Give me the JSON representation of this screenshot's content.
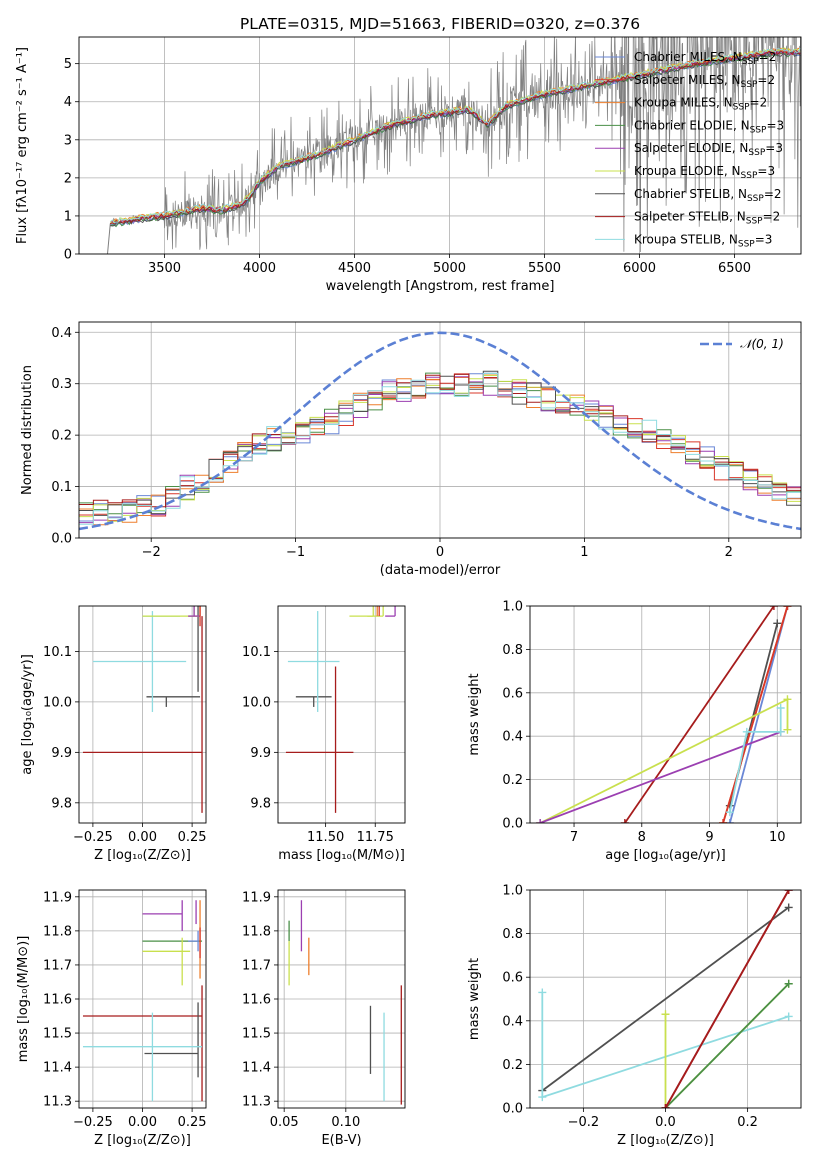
{
  "colors": {
    "chabrier_miles": "#6a87d6",
    "salpeter_miles": "#d9372a",
    "kroupa_miles": "#ee7f2d",
    "chabrier_elodie": "#4a8f47",
    "salpeter_elodie": "#9b3fb1",
    "kroupa_elodie": "#c9e04e",
    "chabrier_stelib": "#505050",
    "salpeter_stelib": "#a61c1c",
    "kroupa_stelib": "#8fdbe0",
    "spectrum": "#7f7f7f",
    "gaussian": "#5b80d4"
  },
  "chart_data": [
    {
      "id": "spectrum",
      "type": "line",
      "title": "PLATE=0315, MJD=51663, FIBERID=0320, z=0.376",
      "xlabel": "wavelength [Angstrom, rest frame]",
      "ylabel": "Flux [fλ10⁻¹⁷ erg cm⁻² s⁻¹ A⁻¹]",
      "xlim": [
        3050,
        6850
      ],
      "ylim": [
        0,
        5.7
      ],
      "xticks": [
        3500,
        4000,
        4500,
        5000,
        5500,
        6000,
        6500
      ],
      "yticks": [
        0,
        1,
        2,
        3,
        4,
        5
      ],
      "legend_position": "top-right",
      "continuum_anchors": [
        [
          3200,
          0.0
        ],
        [
          3215,
          0.8
        ],
        [
          3400,
          0.95
        ],
        [
          3500,
          1.0
        ],
        [
          3600,
          1.1
        ],
        [
          3700,
          1.2
        ],
        [
          3800,
          1.15
        ],
        [
          3900,
          1.3
        ],
        [
          3950,
          1.5
        ],
        [
          4000,
          1.9
        ],
        [
          4100,
          2.3
        ],
        [
          4300,
          2.6
        ],
        [
          4500,
          3.0
        ],
        [
          4700,
          3.4
        ],
        [
          4900,
          3.65
        ],
        [
          5100,
          3.8
        ],
        [
          5200,
          3.4
        ],
        [
          5300,
          3.9
        ],
        [
          5500,
          4.2
        ],
        [
          5700,
          4.4
        ],
        [
          5900,
          4.6
        ],
        [
          6100,
          4.8
        ],
        [
          6300,
          5.0
        ],
        [
          6500,
          5.15
        ],
        [
          6700,
          5.3
        ]
      ],
      "legend": [
        {
          "label": "Chabrier MILES, N",
          "sub": "SSP",
          "n": "=2",
          "color_key": "chabrier_miles"
        },
        {
          "label": "Salpeter MILES, N",
          "sub": "SSP",
          "n": "=2",
          "color_key": "salpeter_miles"
        },
        {
          "label": "Kroupa MILES, N",
          "sub": "SSP",
          "n": "=2",
          "color_key": "kroupa_miles"
        },
        {
          "label": "Chabrier ELODIE, N",
          "sub": "SSP",
          "n": "=3",
          "color_key": "chabrier_elodie"
        },
        {
          "label": "Salpeter ELODIE, N",
          "sub": "SSP",
          "n": "=3",
          "color_key": "salpeter_elodie"
        },
        {
          "label": "Kroupa ELODIE, N",
          "sub": "SSP",
          "n": "=3",
          "color_key": "kroupa_elodie"
        },
        {
          "label": "Chabrier STELIB, N",
          "sub": "SSP",
          "n": "=2",
          "color_key": "chabrier_stelib"
        },
        {
          "label": "Salpeter STELIB, N",
          "sub": "SSP",
          "n": "=2",
          "color_key": "salpeter_stelib"
        },
        {
          "label": "Kroupa STELIB, N",
          "sub": "SSP",
          "n": "=3",
          "color_key": "kroupa_stelib"
        }
      ]
    },
    {
      "id": "residuals",
      "type": "line",
      "xlabel": "(data-model)/error",
      "ylabel": "Normed distribution",
      "xlim": [
        -2.5,
        2.5
      ],
      "ylim": [
        0,
        0.42
      ],
      "xticks": [
        -2,
        -1,
        0,
        1,
        2
      ],
      "yticks": [
        0.0,
        0.1,
        0.2,
        0.3,
        0.4
      ],
      "gaussian_label": "𝒩(0, 1)",
      "legend_position": "top-right",
      "hist_profile": {
        "x": [
          -2.5,
          -2.2,
          -2.0,
          -1.8,
          -1.6,
          -1.4,
          -1.2,
          -1.0,
          -0.8,
          -0.6,
          -0.4,
          -0.2,
          0.0,
          0.2,
          0.4,
          0.6,
          0.8,
          1.0,
          1.2,
          1.4,
          1.6,
          1.8,
          2.0,
          2.2,
          2.5
        ],
        "y": [
          0.05,
          0.05,
          0.06,
          0.09,
          0.12,
          0.16,
          0.19,
          0.2,
          0.22,
          0.25,
          0.28,
          0.29,
          0.3,
          0.3,
          0.3,
          0.28,
          0.27,
          0.25,
          0.23,
          0.21,
          0.19,
          0.16,
          0.13,
          0.11,
          0.08
        ]
      }
    },
    {
      "id": "age_vs_Z",
      "type": "scatter",
      "xlabel": "Z [log₁₀(Z/Z⊙)]",
      "ylabel": "age  [log₁₀(age/yr)]",
      "xlim": [
        -0.32,
        0.32
      ],
      "ylim": [
        9.76,
        10.19
      ],
      "xticks": [
        -0.25,
        0.0,
        0.25
      ],
      "xticklabels": [
        "−0.25",
        "0.00",
        "0.25"
      ],
      "yticks": [
        9.8,
        9.9,
        10.0,
        10.1
      ],
      "points": [
        {
          "k": "chabrier_stelib",
          "x": 0.28,
          "y": 10.1,
          "xe": [
            0.0,
            0.0
          ],
          "ye": [
            0.08,
            0.11
          ]
        },
        {
          "k": "chabrier_stelib",
          "x": 0.12,
          "y": 10.01,
          "xe": [
            0.1,
            0.17
          ],
          "ye": [
            0.02,
            0.0
          ]
        },
        {
          "k": "salpeter_stelib",
          "x": 0.3,
          "y": 9.9,
          "xe": [
            0.6,
            0.0
          ],
          "ye": [
            0.12,
            0.27
          ]
        },
        {
          "k": "kroupa_stelib",
          "x": 0.05,
          "y": 10.08,
          "xe": [
            0.3,
            0.17
          ],
          "ye": [
            0.1,
            0.1
          ]
        },
        {
          "k": "kroupa_stelib",
          "x": 0.16,
          "y": 10.17,
          "xe": [
            0.16,
            0.03
          ],
          "ye": [
            0.0,
            0.0
          ]
        },
        {
          "k": "kroupa_elodie",
          "x": 0.22,
          "y": 10.17,
          "xe": [
            0.22,
            0.06
          ],
          "ye": [
            0.0,
            0.0
          ]
        },
        {
          "k": "kroupa_elodie",
          "x": 0.26,
          "y": 10.17,
          "xe": [
            0.03,
            0.03
          ],
          "ye": [
            0.0,
            0.05
          ]
        },
        {
          "k": "salpeter_elodie",
          "x": 0.26,
          "y": 10.17,
          "xe": [
            0.03,
            0.03
          ],
          "ye": [
            0.0,
            0.06
          ]
        },
        {
          "k": "kroupa_miles",
          "x": 0.29,
          "y": 10.17,
          "xe": [
            0.0,
            0.0
          ],
          "ye": [
            0.0,
            0.17
          ]
        },
        {
          "k": "salpeter_miles",
          "x": 0.29,
          "y": 10.15,
          "xe": [
            0.0,
            0.0
          ],
          "ye": [
            0.0,
            0.1
          ]
        }
      ]
    },
    {
      "id": "age_vs_mass",
      "type": "scatter",
      "xlabel": "mass [log₁₀(M/M⊙)]",
      "ylabel": "",
      "xlim": [
        11.26,
        11.9
      ],
      "ylim": [
        9.76,
        10.19
      ],
      "xticks": [
        11.5,
        11.75
      ],
      "xticklabels": [
        "11.50",
        "11.75"
      ],
      "yticks": [
        9.8,
        9.9,
        10.0,
        10.1
      ],
      "points": [
        {
          "k": "chabrier_stelib",
          "x": 11.44,
          "y": 10.01,
          "xe": [
            0.09,
            0.09
          ],
          "ye": [
            0.02,
            0.0
          ]
        },
        {
          "k": "salpeter_stelib",
          "x": 11.55,
          "y": 9.9,
          "xe": [
            0.25,
            0.09
          ],
          "ye": [
            0.12,
            0.17
          ]
        },
        {
          "k": "kroupa_stelib",
          "x": 11.46,
          "y": 10.08,
          "xe": [
            0.15,
            0.11
          ],
          "ye": [
            0.1,
            0.1
          ]
        },
        {
          "k": "kroupa_elodie",
          "x": 11.74,
          "y": 10.17,
          "xe": [
            0.12,
            0.0
          ],
          "ye": [
            0.0,
            0.05
          ]
        },
        {
          "k": "kroupa_elodie",
          "x": 11.79,
          "y": 10.17,
          "xe": [
            0.08,
            0.0
          ],
          "ye": [
            0.0,
            0.06
          ]
        },
        {
          "k": "salpeter_elodie",
          "x": 11.85,
          "y": 10.17,
          "xe": [
            0.05,
            0.0
          ],
          "ye": [
            0.0,
            0.09
          ]
        },
        {
          "k": "kroupa_miles",
          "x": 11.76,
          "y": 10.17,
          "xe": [
            0.0,
            0.0
          ],
          "ye": [
            0.0,
            0.12
          ]
        },
        {
          "k": "salpeter_miles",
          "x": 11.77,
          "y": 10.17,
          "xe": [
            0.0,
            0.0
          ],
          "ye": [
            0.0,
            0.08
          ]
        }
      ]
    },
    {
      "id": "weight_vs_age",
      "type": "line",
      "xlabel": "age  [log₁₀(age/yr)]",
      "ylabel": "mass weight",
      "xlim": [
        6.35,
        10.35
      ],
      "ylim": [
        0,
        1
      ],
      "xticks": [
        7,
        8,
        9,
        10
      ],
      "yticks": [
        0.0,
        0.2,
        0.4,
        0.6,
        0.8,
        1.0
      ],
      "series": [
        {
          "k": "salpeter_stelib",
          "x": [
            7.75,
            9.95
          ],
          "y": [
            0.0,
            1.0
          ]
        },
        {
          "k": "chabrier_stelib",
          "x": [
            9.3,
            10.0
          ],
          "y": [
            0.08,
            0.92
          ]
        },
        {
          "k": "chabrier_miles",
          "x": [
            9.3,
            10.15
          ],
          "y": [
            0.0,
            1.0
          ]
        },
        {
          "k": "kroupa_miles",
          "x": [
            9.2,
            10.15
          ],
          "y": [
            0.0,
            1.0
          ]
        },
        {
          "k": "salpeter_miles",
          "x": [
            9.2,
            10.15
          ],
          "y": [
            0.0,
            1.0
          ]
        },
        {
          "k": "kroupa_elodie",
          "x": [
            6.5,
            10.15,
            10.15
          ],
          "y": [
            0.0,
            0.57,
            0.43
          ]
        },
        {
          "k": "salpeter_elodie",
          "x": [
            6.5,
            10.05
          ],
          "y": [
            0.0,
            0.42
          ]
        },
        {
          "k": "kroupa_stelib",
          "x": [
            9.3,
            9.55,
            10.05,
            10.05
          ],
          "y": [
            0.05,
            0.42,
            0.42,
            0.53
          ]
        }
      ]
    },
    {
      "id": "mass_vs_Z",
      "type": "scatter",
      "xlabel": "Z [log₁₀(Z/Z⊙)]",
      "ylabel": "mass [log₁₀(M/M⊙)]",
      "xlim": [
        -0.32,
        0.32
      ],
      "ylim": [
        11.28,
        11.92
      ],
      "xticks": [
        -0.25,
        0.0,
        0.25
      ],
      "xticklabels": [
        "−0.25",
        "0.00",
        "0.25"
      ],
      "yticks": [
        11.3,
        11.4,
        11.5,
        11.6,
        11.7,
        11.8,
        11.9
      ],
      "points": [
        {
          "k": "salpeter_elodie",
          "x": 0.1,
          "y": 11.85,
          "xe": [
            0.1,
            0.1
          ],
          "ye": [
            0.0,
            0.0
          ]
        },
        {
          "k": "salpeter_elodie",
          "x": 0.2,
          "y": 11.85,
          "xe": [
            0.0,
            0.0
          ],
          "ye": [
            0.05,
            0.04
          ]
        },
        {
          "k": "salpeter_elodie",
          "x": 0.27,
          "y": 11.86,
          "xe": [
            0.0,
            0.0
          ],
          "ye": [
            0.04,
            0.03
          ]
        },
        {
          "k": "chabrier_elodie",
          "x": 0.15,
          "y": 11.77,
          "xe": [
            0.15,
            0.15
          ],
          "ye": [
            0.0,
            0.0
          ]
        },
        {
          "k": "chabrier_miles",
          "x": 0.28,
          "y": 11.77,
          "xe": [
            0.05,
            0.0
          ],
          "ye": [
            0.03,
            0.03
          ]
        },
        {
          "k": "kroupa_elodie",
          "x": 0.12,
          "y": 11.74,
          "xe": [
            0.12,
            0.12
          ],
          "ye": [
            0.0,
            0.0
          ]
        },
        {
          "k": "kroupa_elodie",
          "x": 0.2,
          "y": 11.73,
          "xe": [
            0.0,
            0.0
          ],
          "ye": [
            0.09,
            0.05
          ]
        },
        {
          "k": "kroupa_miles",
          "x": 0.29,
          "y": 11.76,
          "xe": [
            0.0,
            0.0
          ],
          "ye": [
            0.1,
            0.13
          ]
        },
        {
          "k": "salpeter_miles",
          "x": 0.29,
          "y": 11.78,
          "xe": [
            0.0,
            0.0
          ],
          "ye": [
            0.06,
            0.03
          ]
        },
        {
          "k": "salpeter_stelib",
          "x": 0.3,
          "y": 11.55,
          "xe": [
            0.6,
            0.0
          ],
          "ye": [
            0.25,
            0.09
          ]
        },
        {
          "k": "chabrier_stelib",
          "x": 0.28,
          "y": 11.44,
          "xe": [
            0.27,
            0.0
          ],
          "ye": [
            0.07,
            0.15
          ]
        },
        {
          "k": "kroupa_stelib",
          "x": 0.05,
          "y": 11.46,
          "xe": [
            0.35,
            0.25
          ],
          "ye": [
            0.16,
            0.1
          ]
        }
      ]
    },
    {
      "id": "mass_vs_ebv",
      "type": "scatter",
      "xlabel": "E(B-V)",
      "ylabel": "",
      "xlim": [
        0.045,
        0.148
      ],
      "ylim": [
        11.28,
        11.92
      ],
      "xticks": [
        0.05,
        0.1
      ],
      "xticklabels": [
        "0.05",
        "0.10"
      ],
      "yticks": [
        11.3,
        11.4,
        11.5,
        11.6,
        11.7,
        11.8,
        11.9
      ],
      "points": [
        {
          "k": "chabrier_elodie",
          "x": 0.054,
          "y": 11.77,
          "xe": [
            0.0,
            0.0
          ],
          "ye": [
            0.0,
            0.06
          ]
        },
        {
          "k": "kroupa_elodie",
          "x": 0.054,
          "y": 11.74,
          "xe": [
            0.0,
            0.0
          ],
          "ye": [
            0.1,
            0.03
          ]
        },
        {
          "k": "salpeter_elodie",
          "x": 0.064,
          "y": 11.85,
          "xe": [
            0.0,
            0.0
          ],
          "ye": [
            0.11,
            0.04
          ]
        },
        {
          "k": "kroupa_miles",
          "x": 0.07,
          "y": 11.73,
          "xe": [
            0.0,
            0.0
          ],
          "ye": [
            0.06,
            0.05
          ]
        },
        {
          "k": "chabrier_stelib",
          "x": 0.12,
          "y": 11.48,
          "xe": [
            0.0,
            0.0
          ],
          "ye": [
            0.1,
            0.1
          ]
        },
        {
          "k": "kroupa_stelib",
          "x": 0.131,
          "y": 11.46,
          "xe": [
            0.0,
            0.0
          ],
          "ye": [
            0.16,
            0.1
          ]
        },
        {
          "k": "salpeter_stelib",
          "x": 0.145,
          "y": 11.49,
          "xe": [
            0.0,
            0.0
          ],
          "ye": [
            0.2,
            0.15
          ]
        }
      ]
    },
    {
      "id": "weight_vs_Z",
      "type": "line",
      "xlabel": "Z [log₁₀(Z/Z⊙)]",
      "ylabel": "mass weight",
      "xlim": [
        -0.33,
        0.33
      ],
      "ylim": [
        0,
        1
      ],
      "xticks": [
        -0.2,
        0.0,
        0.2
      ],
      "xticklabels": [
        "−0.2",
        "0.0",
        "0.2"
      ],
      "yticks": [
        0.0,
        0.2,
        0.4,
        0.6,
        0.8,
        1.0
      ],
      "series": [
        {
          "k": "chabrier_stelib",
          "x": [
            -0.3,
            0.3
          ],
          "y": [
            0.08,
            0.92
          ]
        },
        {
          "k": "kroupa_stelib",
          "x": [
            -0.3,
            -0.3,
            0.3
          ],
          "y": [
            0.53,
            0.05,
            0.42
          ]
        },
        {
          "k": "kroupa_elodie",
          "x": [
            0.0,
            0.0,
            0.3
          ],
          "y": [
            0.43,
            0.0,
            0.57
          ]
        },
        {
          "k": "chabrier_elodie",
          "x": [
            0.0,
            0.3
          ],
          "y": [
            0.0,
            0.57
          ]
        },
        {
          "k": "chabrier_miles",
          "x": [
            0.0,
            0.3
          ],
          "y": [
            0.0,
            1.0
          ]
        },
        {
          "k": "salpeter_miles",
          "x": [
            0.0,
            0.3
          ],
          "y": [
            0.0,
            1.0
          ]
        },
        {
          "k": "salpeter_stelib",
          "x": [
            0.0,
            0.3
          ],
          "y": [
            0.0,
            1.0
          ]
        }
      ]
    }
  ]
}
